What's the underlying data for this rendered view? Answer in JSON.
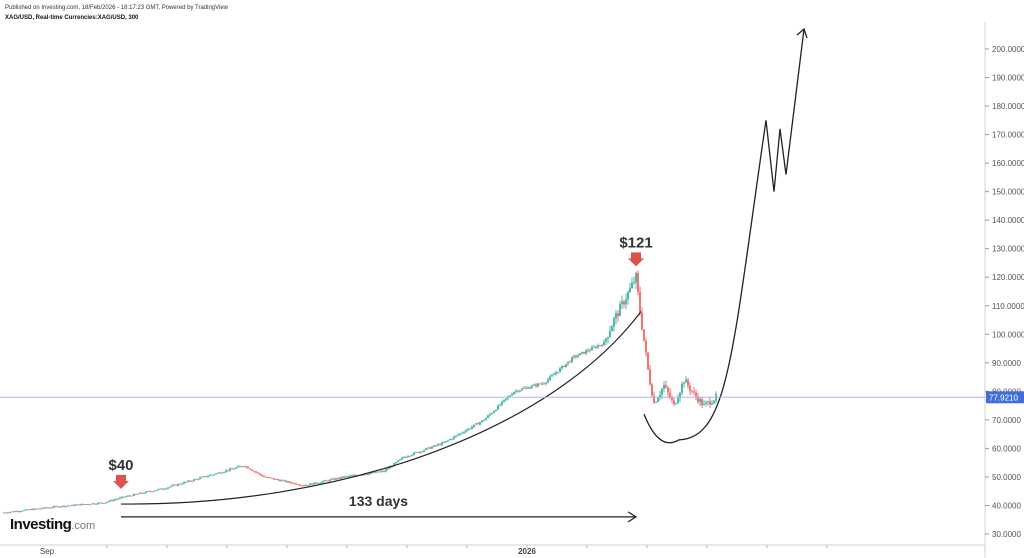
{
  "header": {
    "published": "Published on Investing.com, 18/Feb/2026 - 18:17:23 GMT, Powered by TradingView",
    "symbol": "XAG/USD, Real-time Currencies:XAG/USD, 300"
  },
  "logo": {
    "brand": "Investing",
    "suffix": ".com"
  },
  "colors": {
    "up": "#26a69a",
    "down": "#ef5350",
    "annotation_arrow": "#d9534f",
    "current_line": "#aab4ee",
    "current_badge": "#3f6fd8",
    "axis_text": "#555555"
  },
  "chart_data": {
    "type": "candlestick",
    "symbol": "XAG/USD",
    "y_axis": {
      "range": [
        30,
        210
      ],
      "ticks": [
        "30.0000",
        "40.0000",
        "50.0000",
        "60.0000",
        "70.0000",
        "80.0000",
        "90.0000",
        "100.0000",
        "110.0000",
        "120.0000",
        "130.0000",
        "140.0000",
        "150.0000",
        "160.0000",
        "170.0000",
        "180.0000",
        "190.0000",
        "200.0000"
      ]
    },
    "x_axis": {
      "labels": [
        "Sep",
        "2026"
      ]
    },
    "current_price": "77.9210",
    "price_path": [
      {
        "bar": 0,
        "price": 37.5
      },
      {
        "bar": 50,
        "price": 39.5
      },
      {
        "bar": 100,
        "price": 41
      },
      {
        "bar": 120,
        "price": 43
      },
      {
        "bar": 160,
        "price": 46
      },
      {
        "bar": 200,
        "price": 50
      },
      {
        "bar": 240,
        "price": 54
      },
      {
        "bar": 260,
        "price": 50
      },
      {
        "bar": 300,
        "price": 47
      },
      {
        "bar": 340,
        "price": 50
      },
      {
        "bar": 380,
        "price": 52
      },
      {
        "bar": 400,
        "price": 57
      },
      {
        "bar": 440,
        "price": 62
      },
      {
        "bar": 480,
        "price": 70
      },
      {
        "bar": 510,
        "price": 80
      },
      {
        "bar": 540,
        "price": 83
      },
      {
        "bar": 570,
        "price": 92
      },
      {
        "bar": 600,
        "price": 97
      },
      {
        "bar": 610,
        "price": 105
      },
      {
        "bar": 625,
        "price": 115
      },
      {
        "bar": 632,
        "price": 120
      },
      {
        "bar": 636,
        "price": 108
      },
      {
        "bar": 645,
        "price": 85
      },
      {
        "bar": 650,
        "price": 76
      },
      {
        "bar": 660,
        "price": 82
      },
      {
        "bar": 670,
        "price": 75
      },
      {
        "bar": 680,
        "price": 84
      },
      {
        "bar": 690,
        "price": 79
      },
      {
        "bar": 700,
        "price": 75
      },
      {
        "bar": 712,
        "price": 77.9
      }
    ],
    "annotations": [
      {
        "type": "label-arrow",
        "text": "$40",
        "bar": 117,
        "price": 43
      },
      {
        "type": "label-arrow",
        "text": "$121",
        "bar": 632,
        "price": 121
      },
      {
        "type": "duration-arrow",
        "text": "133 days",
        "from_bar": 117,
        "to_bar": 632
      }
    ],
    "projection": [
      {
        "bar": 640,
        "price": 72
      },
      {
        "bar": 675,
        "price": 63
      },
      {
        "bar": 720,
        "price": 80
      },
      {
        "bar": 748,
        "price": 125
      },
      {
        "bar": 762,
        "price": 175
      },
      {
        "bar": 770,
        "price": 150
      },
      {
        "bar": 776,
        "price": 172
      },
      {
        "bar": 782,
        "price": 156
      },
      {
        "bar": 800,
        "price": 207
      }
    ]
  }
}
